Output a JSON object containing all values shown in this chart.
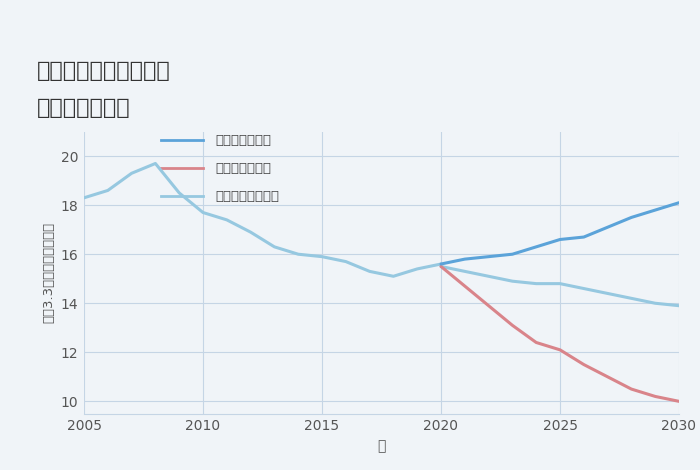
{
  "title_line1": "三重県松阪市阪内町の",
  "title_line2": "土地の価格推移",
  "xlabel": "年",
  "ylabel": "坪（3.3㎡）単価（万円）",
  "xlim": [
    2005,
    2030
  ],
  "ylim": [
    9.5,
    21
  ],
  "yticks": [
    10,
    12,
    14,
    16,
    18,
    20
  ],
  "xticks": [
    2005,
    2010,
    2015,
    2020,
    2025,
    2030
  ],
  "background_color": "#f0f4f8",
  "plot_bg_color": "#f0f4f8",
  "grid_color": "#c5d5e5",
  "good_color": "#5ba3d9",
  "bad_color": "#d9848a",
  "normal_color": "#96c8e0",
  "good_label": "グッドシナリオ",
  "bad_label": "バッドシナリオ",
  "normal_label": "ノーマルシナリオ",
  "historical_years": [
    2005,
    2006,
    2007,
    2008,
    2009,
    2010,
    2011,
    2012,
    2013,
    2014,
    2015,
    2016,
    2017,
    2018,
    2019,
    2020
  ],
  "historical_values": [
    18.3,
    18.6,
    19.3,
    19.7,
    18.5,
    17.7,
    17.4,
    16.9,
    16.3,
    16.0,
    15.9,
    15.7,
    15.3,
    15.1,
    15.4,
    15.6
  ],
  "good_years": [
    2020,
    2021,
    2022,
    2023,
    2024,
    2025,
    2026,
    2027,
    2028,
    2029,
    2030
  ],
  "good_values": [
    15.6,
    15.8,
    15.9,
    16.0,
    16.3,
    16.6,
    16.7,
    17.1,
    17.5,
    17.8,
    18.1
  ],
  "bad_years": [
    2020,
    2021,
    2022,
    2023,
    2024,
    2025,
    2026,
    2027,
    2028,
    2029,
    2030
  ],
  "bad_values": [
    15.5,
    14.7,
    13.9,
    13.1,
    12.4,
    12.1,
    11.5,
    11.0,
    10.5,
    10.2,
    10.0
  ],
  "normal_years": [
    2020,
    2021,
    2022,
    2023,
    2024,
    2025,
    2026,
    2027,
    2028,
    2029,
    2030
  ],
  "normal_values": [
    15.5,
    15.3,
    15.1,
    14.9,
    14.8,
    14.8,
    14.6,
    14.4,
    14.2,
    14.0,
    13.9
  ]
}
